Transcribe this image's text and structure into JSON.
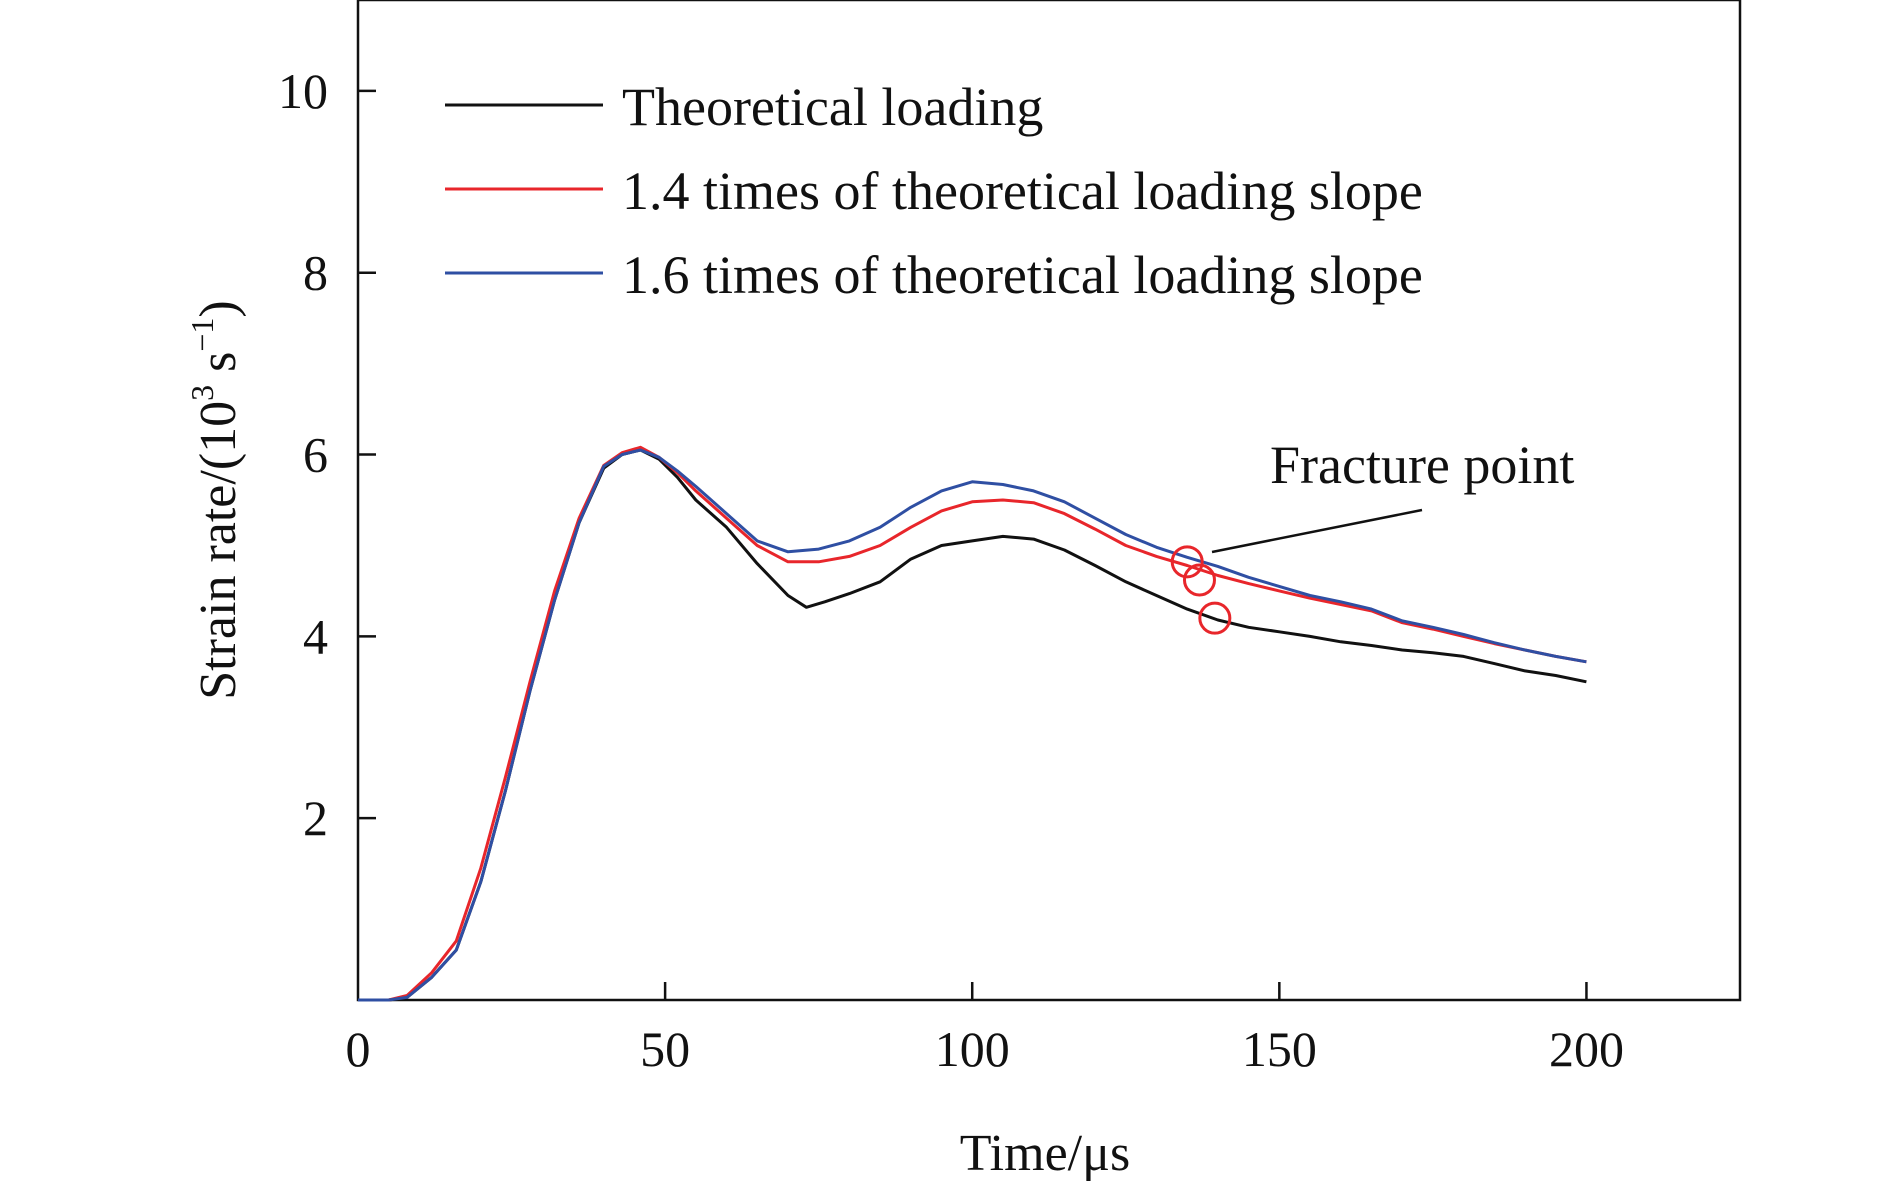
{
  "chart_data": {
    "type": "line",
    "xlabel": "Time/μs",
    "ylabel": {
      "base": "Strain rate/(10",
      "exp1": "3",
      "mid": " s",
      "exp2": "−1",
      "end": ")"
    },
    "xlim": [
      0,
      225
    ],
    "ylim": [
      0,
      11
    ],
    "xticks": [
      0,
      50,
      100,
      150,
      200
    ],
    "yticks": [
      2,
      4,
      6,
      8,
      10
    ],
    "xtick_labels": [
      "0",
      "50",
      "100",
      "150",
      "200"
    ],
    "ytick_labels": [
      "2",
      "4",
      "6",
      "8",
      "10"
    ],
    "grid": false,
    "legend": "top-left",
    "series": [
      {
        "name": "Theoretical loading",
        "color": "#111111",
        "points": [
          [
            0,
            0
          ],
          [
            5,
            0
          ],
          [
            8,
            0.03
          ],
          [
            12,
            0.25
          ],
          [
            16,
            0.55
          ],
          [
            20,
            1.3
          ],
          [
            24,
            2.3
          ],
          [
            28,
            3.4
          ],
          [
            32,
            4.4
          ],
          [
            36,
            5.25
          ],
          [
            40,
            5.85
          ],
          [
            43,
            6.0
          ],
          [
            46,
            6.05
          ],
          [
            49,
            5.95
          ],
          [
            52,
            5.75
          ],
          [
            55,
            5.5
          ],
          [
            60,
            5.2
          ],
          [
            65,
            4.8
          ],
          [
            70,
            4.45
          ],
          [
            73,
            4.32
          ],
          [
            76,
            4.38
          ],
          [
            80,
            4.47
          ],
          [
            85,
            4.6
          ],
          [
            90,
            4.85
          ],
          [
            95,
            5.0
          ],
          [
            100,
            5.05
          ],
          [
            105,
            5.1
          ],
          [
            110,
            5.07
          ],
          [
            115,
            4.95
          ],
          [
            120,
            4.78
          ],
          [
            125,
            4.6
          ],
          [
            130,
            4.45
          ],
          [
            135,
            4.3
          ],
          [
            140,
            4.18
          ],
          [
            145,
            4.1
          ],
          [
            150,
            4.05
          ],
          [
            155,
            4.0
          ],
          [
            160,
            3.94
          ],
          [
            165,
            3.9
          ],
          [
            170,
            3.85
          ],
          [
            175,
            3.82
          ],
          [
            180,
            3.78
          ],
          [
            185,
            3.7
          ],
          [
            190,
            3.62
          ],
          [
            195,
            3.57
          ],
          [
            200,
            3.5
          ]
        ]
      },
      {
        "name": "1.4 times of theoretical loading slope",
        "color": "#e8262b",
        "points": [
          [
            0,
            0
          ],
          [
            5,
            0
          ],
          [
            8,
            0.05
          ],
          [
            12,
            0.3
          ],
          [
            16,
            0.65
          ],
          [
            20,
            1.45
          ],
          [
            24,
            2.45
          ],
          [
            28,
            3.5
          ],
          [
            32,
            4.5
          ],
          [
            36,
            5.3
          ],
          [
            40,
            5.88
          ],
          [
            43,
            6.02
          ],
          [
            46,
            6.08
          ],
          [
            49,
            5.97
          ],
          [
            52,
            5.8
          ],
          [
            55,
            5.6
          ],
          [
            60,
            5.3
          ],
          [
            65,
            5.0
          ],
          [
            70,
            4.82
          ],
          [
            75,
            4.82
          ],
          [
            80,
            4.88
          ],
          [
            85,
            5.0
          ],
          [
            90,
            5.2
          ],
          [
            95,
            5.38
          ],
          [
            100,
            5.48
          ],
          [
            105,
            5.5
          ],
          [
            110,
            5.47
          ],
          [
            115,
            5.35
          ],
          [
            120,
            5.18
          ],
          [
            125,
            5.0
          ],
          [
            130,
            4.88
          ],
          [
            135,
            4.78
          ],
          [
            140,
            4.67
          ],
          [
            145,
            4.58
          ],
          [
            150,
            4.5
          ],
          [
            155,
            4.42
          ],
          [
            160,
            4.35
          ],
          [
            165,
            4.28
          ],
          [
            170,
            4.15
          ],
          [
            175,
            4.08
          ],
          [
            180,
            4.0
          ],
          [
            185,
            3.92
          ],
          [
            190,
            3.85
          ],
          [
            195,
            3.78
          ],
          [
            200,
            3.72
          ]
        ]
      },
      {
        "name": "1.6 times of theoretical loading slope",
        "color": "#2f4fa3",
        "points": [
          [
            0,
            0
          ],
          [
            5,
            0
          ],
          [
            8,
            0.03
          ],
          [
            12,
            0.25
          ],
          [
            16,
            0.55
          ],
          [
            20,
            1.3
          ],
          [
            24,
            2.3
          ],
          [
            28,
            3.4
          ],
          [
            32,
            4.4
          ],
          [
            36,
            5.25
          ],
          [
            40,
            5.87
          ],
          [
            43,
            6.0
          ],
          [
            46,
            6.05
          ],
          [
            49,
            5.97
          ],
          [
            52,
            5.82
          ],
          [
            55,
            5.65
          ],
          [
            60,
            5.35
          ],
          [
            65,
            5.05
          ],
          [
            70,
            4.93
          ],
          [
            75,
            4.96
          ],
          [
            80,
            5.05
          ],
          [
            85,
            5.2
          ],
          [
            90,
            5.42
          ],
          [
            95,
            5.6
          ],
          [
            100,
            5.7
          ],
          [
            105,
            5.67
          ],
          [
            110,
            5.6
          ],
          [
            115,
            5.48
          ],
          [
            120,
            5.3
          ],
          [
            125,
            5.12
          ],
          [
            130,
            4.98
          ],
          [
            135,
            4.87
          ],
          [
            140,
            4.77
          ],
          [
            145,
            4.65
          ],
          [
            150,
            4.55
          ],
          [
            155,
            4.45
          ],
          [
            160,
            4.38
          ],
          [
            165,
            4.3
          ],
          [
            170,
            4.17
          ],
          [
            175,
            4.1
          ],
          [
            180,
            4.02
          ],
          [
            185,
            3.93
          ],
          [
            190,
            3.85
          ],
          [
            195,
            3.78
          ],
          [
            200,
            3.72
          ]
        ]
      }
    ],
    "annotations": {
      "label": "Fracture point",
      "markers": [
        [
          135,
          4.82
        ],
        [
          137,
          4.62
        ],
        [
          139.5,
          4.2
        ]
      ],
      "marker_color": "#e8262b"
    }
  }
}
